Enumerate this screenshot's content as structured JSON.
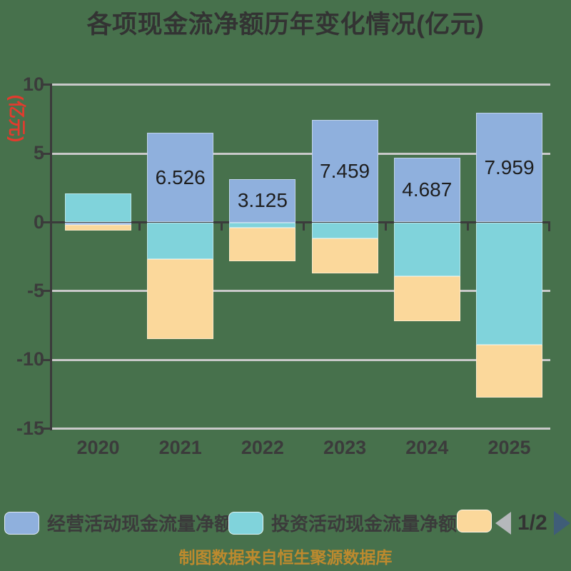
{
  "title": "各项现金流净额历年变化情况(亿元)",
  "y_axis_unit": "(亿元)",
  "footer_note": "制图数据来自恒生聚源数据库",
  "legend": {
    "items": [
      {
        "label": "经营活动现金流量净额",
        "color": "#8FB0DD"
      },
      {
        "label": "投资活动现金流量净额",
        "color": "#80D3DB"
      },
      {
        "label": "",
        "color": "#FBD89B"
      }
    ]
  },
  "pager": {
    "text": "1/2",
    "prev_icon": "left-triangle",
    "next_icon": "right-triangle",
    "prev_color": "#B5B8BB",
    "next_color": "#3F5D78"
  },
  "colors": {
    "background": "#47714C",
    "title_text": "#333333",
    "axis": "#3B3B3B",
    "gridline": "#C9C9C9",
    "tick_label": "#3B3B3B",
    "bar_label": "#1E1E1E",
    "unit_label": "#E23B2E",
    "footer_text": "#BD8A2E",
    "legend_text": "#3B3B3B",
    "pager_text": "#333333"
  },
  "chart_data": {
    "type": "bar",
    "stacked": true,
    "categories": [
      "2020",
      "2021",
      "2022",
      "2023",
      "2024",
      "2025"
    ],
    "series": [
      {
        "name": "经营活动现金流量净额",
        "color": "#8FB0DD",
        "values": [
          -0.2,
          6.526,
          3.125,
          7.459,
          4.687,
          7.959
        ],
        "data_labels": [
          "",
          "6.526",
          "3.125",
          "7.459",
          "4.687",
          "7.959"
        ]
      },
      {
        "name": "投资活动现金流量净额",
        "color": "#80D3DB",
        "values": [
          2.1,
          -2.67,
          -0.37,
          -1.15,
          -3.9,
          -8.9
        ]
      },
      {
        "name": "",
        "color": "#FBD89B",
        "values": [
          -0.4,
          -5.8,
          -2.45,
          -2.55,
          -3.3,
          -3.85
        ]
      }
    ],
    "ylabel": "(亿元)",
    "ylim": [
      -15,
      10
    ],
    "yticks": [
      10,
      5,
      0,
      -5,
      -10,
      -15
    ],
    "grid": true,
    "legend_position": "bottom"
  }
}
